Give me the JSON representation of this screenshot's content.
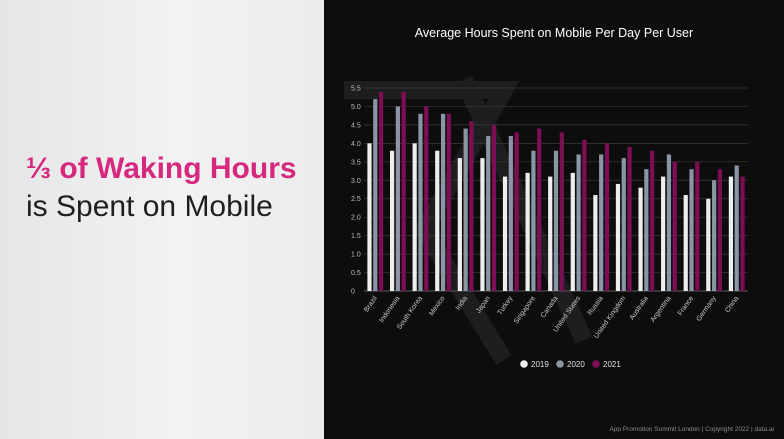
{
  "headline": {
    "accent": "⅓ of Waking Hours",
    "rest": "is Spent on Mobile"
  },
  "footer": {
    "text": "App Promotion Summit London  |  Copyright 2022  |  data.ai"
  },
  "colors": {
    "s2019": "#eeeeee",
    "s2020": "#8a95a6",
    "s2021": "#7d0e55",
    "accent": "#d6287e",
    "grid": "#3a3a3a"
  },
  "chart_data": {
    "type": "bar",
    "title": "Average Hours Spent on Mobile Per Day Per User",
    "xlabel": "",
    "ylabel": "",
    "ylim": [
      0,
      5.5
    ],
    "yticks": [
      "0",
      "0.5",
      "1.0",
      "1.5",
      "2.0",
      "2.5",
      "3.0",
      "3.5",
      "4.0",
      "4.5",
      "5.0",
      "5.5"
    ],
    "grid": true,
    "legend_position": "bottom",
    "categories": [
      "Brazil",
      "Indonesia",
      "South Korea",
      "Mexico",
      "India",
      "Japan",
      "Turkey",
      "Singapore",
      "Canada",
      "United States",
      "Russia",
      "United Kingdom",
      "Australia",
      "Argentina",
      "France",
      "Germany",
      "China"
    ],
    "series": [
      {
        "name": "2019",
        "values": [
          4.0,
          3.8,
          4.0,
          3.8,
          3.6,
          3.6,
          3.1,
          3.2,
          3.1,
          3.2,
          2.6,
          2.9,
          2.8,
          3.1,
          2.6,
          2.5,
          3.1
        ]
      },
      {
        "name": "2020",
        "values": [
          5.2,
          5.0,
          4.8,
          4.8,
          4.4,
          4.2,
          4.2,
          3.8,
          3.8,
          3.7,
          3.7,
          3.6,
          3.3,
          3.7,
          3.3,
          3.0,
          3.4
        ]
      },
      {
        "name": "2021",
        "values": [
          5.4,
          5.4,
          5.0,
          4.8,
          4.6,
          4.5,
          4.3,
          4.4,
          4.3,
          4.1,
          4.0,
          3.9,
          3.8,
          3.5,
          3.5,
          3.3,
          3.1
        ]
      }
    ]
  }
}
